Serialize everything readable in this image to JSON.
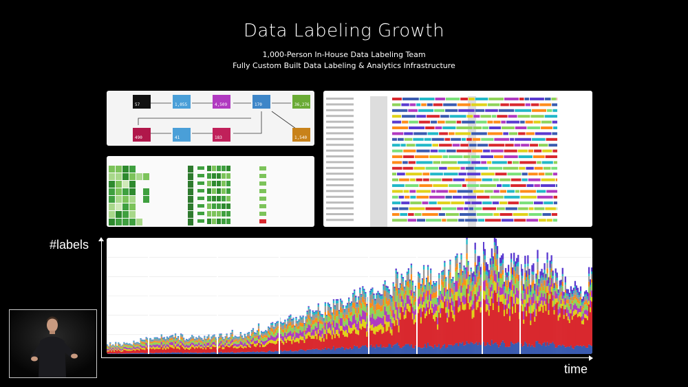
{
  "slide": {
    "title": "Data Labeling Growth",
    "subtitle_line1": "1,000-Person In-House Data Labeling Team",
    "subtitle_line2": "Fully Custom Built Data Labeling & Analytics Infrastructure"
  },
  "flow_panel": {
    "nodes": [
      {
        "value": "57",
        "color": "#111111"
      },
      {
        "value": "1,055",
        "color": "#4a9fd8"
      },
      {
        "value": "4,509",
        "color": "#b03ac0"
      },
      {
        "value": "170",
        "color": "#3e86c8"
      },
      {
        "value": "36,276",
        "color": "#6aab35"
      },
      {
        "value": "490",
        "color": "#b0174a"
      },
      {
        "value": "41",
        "color": "#4a9fd8"
      },
      {
        "value": "183",
        "color": "#c0205a"
      },
      {
        "value": "1,540",
        "color": "#c8821a"
      }
    ]
  },
  "chart_data": {
    "type": "area",
    "xlabel": "time",
    "ylabel": "#labels",
    "grid": true,
    "stacked": true,
    "series_colors": [
      "#3a5bb0",
      "#d9282e",
      "#e0d21a",
      "#b03ac0",
      "#8fd35a",
      "#ff8c1a",
      "#999999",
      "#23b8c8",
      "#5a3ad0"
    ],
    "total_profile": [
      8,
      9,
      10,
      14,
      16,
      17,
      16,
      15,
      15,
      17,
      18,
      19,
      22,
      26,
      30,
      34,
      38,
      42,
      46,
      50,
      54,
      58,
      62,
      66,
      70,
      72,
      60,
      78,
      82,
      85,
      88,
      86,
      82,
      80,
      78,
      72,
      65,
      60,
      68
    ]
  }
}
